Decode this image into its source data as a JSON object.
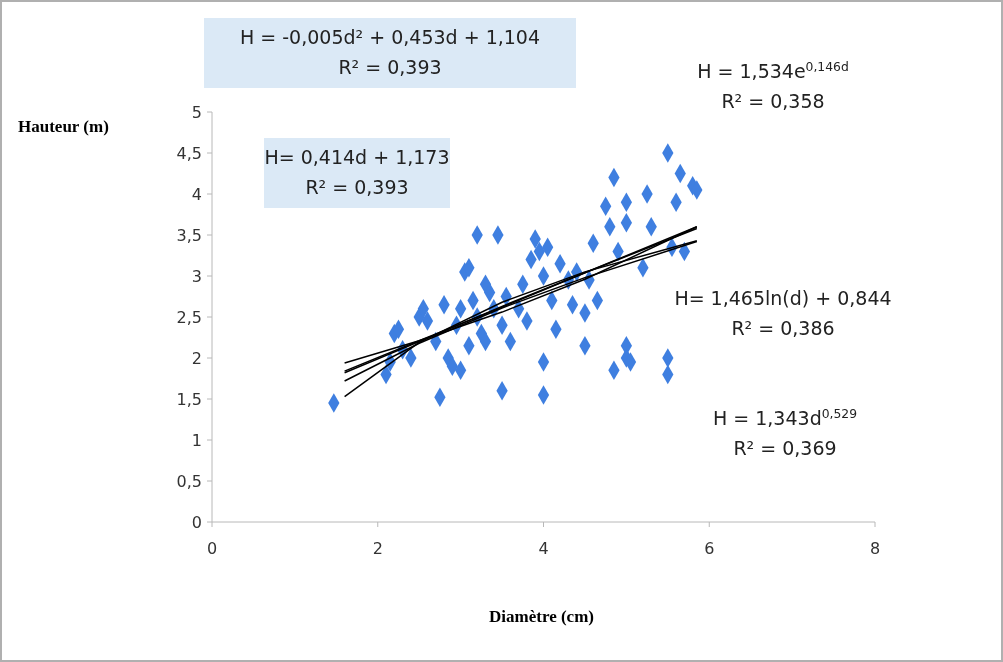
{
  "chart_data": {
    "type": "scatter",
    "xlabel": "Diamètre (cm)",
    "ylabel": "Hauteur (m)",
    "xlim": [
      0,
      8
    ],
    "ylim": [
      0,
      5
    ],
    "xticks": [
      0,
      2,
      4,
      6,
      8
    ],
    "yticks": [
      0,
      {
        "value": 0.5,
        "label": "0,5"
      },
      1,
      {
        "value": 1.5,
        "label": "1,5"
      },
      2,
      {
        "value": 2.5,
        "label": "2,5"
      },
      3,
      {
        "value": 3.5,
        "label": "3,5"
      },
      4,
      {
        "value": 4.5,
        "label": "4,5"
      },
      5
    ],
    "grid": false,
    "marker": "diamond",
    "annotations": [
      "H = -0,005d² + 0,453d + 1,104\nR² = 0,393",
      "H= 0,414d + 1,173\nR² = 0,393",
      "H = 1,534e$^{0,146d}$\nR² = 0,358",
      "H= 1,465ln(d) + 0,844\nR² = 0,386",
      "H = 1,343d$^{0,529}$\nR² = 0,369"
    ],
    "series": [
      {
        "color": "#3f7fe0",
        "x": [
          1.47,
          2.1,
          2.15,
          2.2,
          2.25,
          2.3,
          2.4,
          2.5,
          2.55,
          2.6,
          2.7,
          2.75,
          2.8,
          2.85,
          2.9,
          2.95,
          3.0,
          3.0,
          3.05,
          3.1,
          3.1,
          3.15,
          3.2,
          3.2,
          3.25,
          3.3,
          3.3,
          3.35,
          3.4,
          3.45,
          3.5,
          3.5,
          3.55,
          3.6,
          3.7,
          3.75,
          3.8,
          3.85,
          3.9,
          3.95,
          4.0,
          4.0,
          4.0,
          4.05,
          4.1,
          4.15,
          4.2,
          4.3,
          4.35,
          4.4,
          4.5,
          4.5,
          4.55,
          4.6,
          4.65,
          4.75,
          4.8,
          4.85,
          4.85,
          4.9,
          5.0,
          5.0,
          5.0,
          5.0,
          5.05,
          5.2,
          5.25,
          5.3,
          5.5,
          5.5,
          5.5,
          5.55,
          5.6,
          5.65,
          5.7,
          5.8,
          5.85
        ],
        "values": [
          1.45,
          1.8,
          1.95,
          2.3,
          2.35,
          2.1,
          2.0,
          2.5,
          2.6,
          2.45,
          2.2,
          1.52,
          2.65,
          2.0,
          1.9,
          2.4,
          2.6,
          1.85,
          3.05,
          3.1,
          2.15,
          2.7,
          2.5,
          3.5,
          2.3,
          2.9,
          2.2,
          2.8,
          2.6,
          3.5,
          2.4,
          1.6,
          2.75,
          2.2,
          2.6,
          2.9,
          2.45,
          3.2,
          3.45,
          3.3,
          3.0,
          1.55,
          1.95,
          3.35,
          2.7,
          2.35,
          3.15,
          2.95,
          2.65,
          3.05,
          2.55,
          2.15,
          2.95,
          3.4,
          2.7,
          3.85,
          3.6,
          4.2,
          1.85,
          3.3,
          3.65,
          3.9,
          2.15,
          2.0,
          1.95,
          3.1,
          4.0,
          3.6,
          4.5,
          1.8,
          2.0,
          3.35,
          3.9,
          4.25,
          3.3,
          4.1,
          4.05
        ]
      },
      {
        "type": "line",
        "color": "#000000",
        "marker": "none",
        "x": [
          1.6,
          2.5,
          3.5,
          4.5,
          5.85
        ],
        "values": [
          1.82,
          2.2,
          2.63,
          3.04,
          3.58
        ]
      },
      {
        "type": "line",
        "color": "#000000",
        "marker": "none",
        "x": [
          1.6,
          2.5,
          3.5,
          4.5,
          5.85
        ],
        "values": [
          1.84,
          2.21,
          2.62,
          3.04,
          3.6
        ]
      },
      {
        "type": "line",
        "color": "#000000",
        "marker": "none",
        "x": [
          1.6,
          2.5,
          3.5,
          4.5,
          5.85
        ],
        "values": [
          1.94,
          2.21,
          2.56,
          2.96,
          3.6
        ]
      },
      {
        "type": "line",
        "color": "#000000",
        "marker": "none",
        "x": [
          1.6,
          2.5,
          3.5,
          4.5,
          5.85
        ],
        "values": [
          1.53,
          2.19,
          2.68,
          3.05,
          3.43
        ]
      },
      {
        "type": "line",
        "color": "#000000",
        "marker": "none",
        "x": [
          1.6,
          2.5,
          3.5,
          4.5,
          5.85
        ],
        "values": [
          1.72,
          2.18,
          2.61,
          2.98,
          3.42
        ]
      }
    ]
  }
}
